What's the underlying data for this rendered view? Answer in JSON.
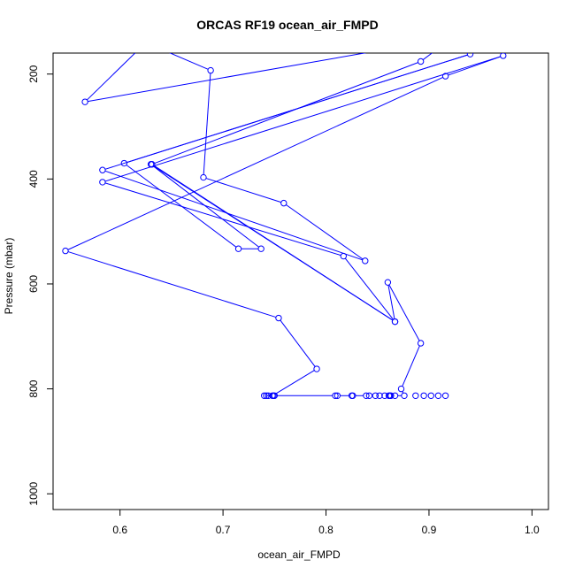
{
  "chart_data": {
    "type": "line",
    "title": "ORCAS RF19 ocean_air_FMPD",
    "xlabel": "ocean_air_FMPD",
    "ylabel": "Pressure (mbar)",
    "xlim": [
      0.535,
      1.016
    ],
    "ylim": [
      1030,
      160
    ],
    "x_ticks": [
      "0.6",
      "0.7",
      "0.8",
      "0.9",
      "1.0"
    ],
    "y_ticks": [
      "200",
      "400",
      "600",
      "800",
      "1000"
    ],
    "grid": false,
    "legend": "none",
    "color": "#0000ff",
    "series": [
      {
        "points": [
          [
            0.91,
            135
          ],
          [
            0.566,
            253
          ],
          [
            0.625,
            140
          ],
          [
            0.688,
            193
          ],
          [
            0.681,
            397
          ],
          [
            0.759,
            446
          ],
          [
            0.838,
            556
          ],
          [
            0.583,
            383
          ],
          [
            0.94,
            162
          ],
          [
            0.604,
            370
          ],
          [
            0.715,
            533
          ],
          [
            0.737,
            533
          ],
          [
            0.63,
            372
          ],
          [
            0.867,
            672
          ],
          [
            0.817,
            547
          ],
          [
            0.583,
            406
          ],
          [
            0.972,
            165
          ],
          [
            0.916,
            204
          ],
          [
            0.547,
            537
          ],
          [
            0.754,
            665
          ],
          [
            0.791,
            762
          ],
          [
            0.748,
            813
          ],
          [
            0.74,
            813
          ],
          [
            0.744,
            813
          ],
          [
            0.749,
            813
          ],
          [
            0.742,
            813
          ],
          [
            0.75,
            813
          ],
          [
            0.809,
            813
          ],
          [
            0.811,
            813
          ],
          [
            0.825,
            813
          ],
          [
            0.826,
            813
          ],
          [
            0.839,
            813
          ],
          [
            0.842,
            813
          ],
          [
            0.848,
            813
          ],
          [
            0.852,
            813
          ],
          [
            0.857,
            813
          ],
          [
            0.861,
            813
          ],
          [
            0.862,
            813
          ],
          [
            0.863,
            813
          ],
          [
            0.867,
            813
          ],
          [
            0.876,
            813
          ],
          [
            0.873,
            800
          ],
          [
            0.892,
            713
          ],
          [
            0.86,
            597
          ],
          [
            0.867,
            672
          ],
          [
            0.631,
            372
          ],
          [
            0.892,
            176
          ],
          [
            0.93,
            120
          ]
        ]
      }
    ],
    "extra_markers": [
      [
        0.887,
        813
      ],
      [
        0.895,
        813
      ],
      [
        0.902,
        813
      ],
      [
        0.909,
        813
      ],
      [
        0.916,
        813
      ]
    ]
  }
}
